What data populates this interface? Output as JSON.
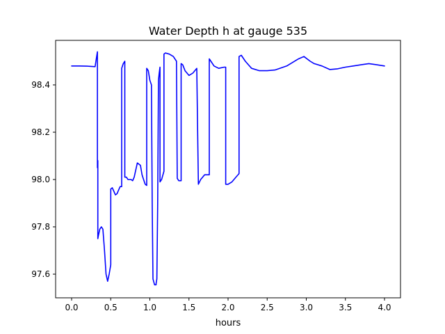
{
  "chart_data": {
    "type": "line",
    "title": "Water Depth h at gauge 535",
    "xlabel": "hours",
    "ylabel": "",
    "xlim": [
      -0.2,
      4.2
    ],
    "ylim": [
      97.505,
      97.665
    ],
    "x_ticks": [
      0.0,
      0.5,
      1.0,
      1.5,
      2.0,
      2.5,
      3.0,
      3.5,
      4.0
    ],
    "x_tick_labels": [
      "0.0",
      "0.5",
      "1.0",
      "1.5",
      "2.0",
      "2.5",
      "3.0",
      "3.5",
      "4.0"
    ],
    "y_ticks": [
      97.6,
      97.8,
      98.0,
      98.2,
      98.4
    ],
    "y_tick_labels": [
      "97.6",
      "97.8",
      "98.0",
      "98.2",
      "98.4"
    ],
    "grid": false,
    "series": [
      {
        "color": "#0000ff",
        "x": [
          0.0,
          0.1,
          0.2,
          0.3,
          0.32,
          0.33,
          0.33,
          0.335,
          0.335,
          0.34,
          0.36,
          0.38,
          0.4,
          0.42,
          0.44,
          0.46,
          0.48,
          0.5,
          0.5,
          0.52,
          0.54,
          0.56,
          0.58,
          0.6,
          0.62,
          0.64,
          0.64,
          0.66,
          0.68,
          0.68,
          0.7,
          0.72,
          0.74,
          0.76,
          0.78,
          0.8,
          0.84,
          0.88,
          0.9,
          0.92,
          0.94,
          0.96,
          0.96,
          0.98,
          1.0,
          1.02,
          1.03,
          1.04,
          1.06,
          1.08,
          1.08,
          1.09,
          1.1,
          1.11,
          1.12,
          1.13,
          1.13,
          1.15,
          1.18,
          1.18,
          1.2,
          1.25,
          1.3,
          1.34,
          1.35,
          1.37,
          1.4,
          1.4,
          1.42,
          1.45,
          1.5,
          1.55,
          1.6,
          1.62,
          1.62,
          1.65,
          1.7,
          1.75,
          1.76,
          1.76,
          1.78,
          1.82,
          1.88,
          1.95,
          1.97,
          1.97,
          2.0,
          2.05,
          2.1,
          2.14,
          2.14,
          2.17,
          2.22,
          2.3,
          2.4,
          2.5,
          2.6,
          2.75,
          2.9,
          2.97,
          3.05,
          3.1,
          3.2,
          3.3,
          3.4,
          3.5,
          3.6,
          3.7,
          3.8,
          3.9,
          4.0
        ],
        "y": [
          98.48,
          98.48,
          98.479,
          98.477,
          98.52,
          98.54,
          98.05,
          98.08,
          97.75,
          97.76,
          97.79,
          97.8,
          97.79,
          97.7,
          97.6,
          97.57,
          97.6,
          97.64,
          97.96,
          97.965,
          97.95,
          97.935,
          97.94,
          97.955,
          97.97,
          97.97,
          98.47,
          98.49,
          98.5,
          98.01,
          98.01,
          98.0,
          98.0,
          98.0,
          97.995,
          98.01,
          98.07,
          98.06,
          98.02,
          98.0,
          97.98,
          97.975,
          98.47,
          98.46,
          98.42,
          98.4,
          97.9,
          97.58,
          97.555,
          97.555,
          97.56,
          97.58,
          97.9,
          98.42,
          98.45,
          98.475,
          97.99,
          98.0,
          98.035,
          98.53,
          98.535,
          98.53,
          98.52,
          98.5,
          98.005,
          97.995,
          97.995,
          98.49,
          98.485,
          98.46,
          98.44,
          98.45,
          98.47,
          97.98,
          97.98,
          98.0,
          98.02,
          98.02,
          98.02,
          98.51,
          98.5,
          98.48,
          98.47,
          98.475,
          98.475,
          97.98,
          97.98,
          97.99,
          98.01,
          98.025,
          98.52,
          98.525,
          98.5,
          98.47,
          98.46,
          98.46,
          98.463,
          98.48,
          98.51,
          98.52,
          98.5,
          98.49,
          98.48,
          98.465,
          98.468,
          98.475,
          98.48,
          98.485,
          98.49,
          98.485,
          98.48
        ]
      }
    ]
  }
}
